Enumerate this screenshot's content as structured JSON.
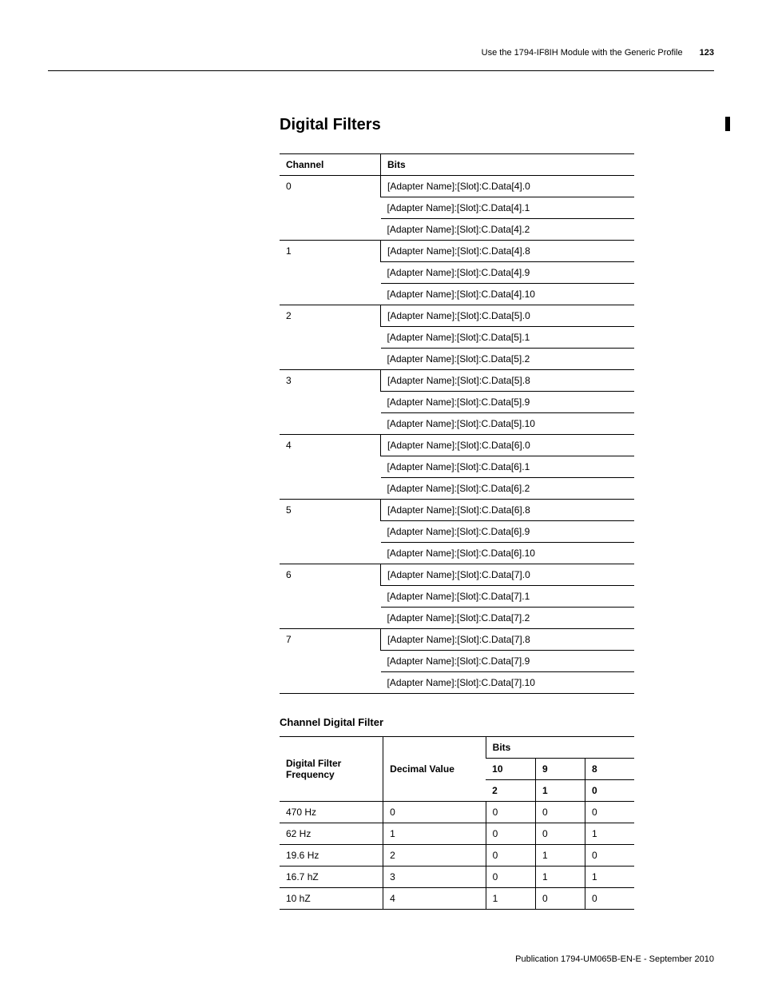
{
  "header": {
    "breadcrumb": "Use the 1794-IF8IH Module with the Generic Profile",
    "page_number": "123"
  },
  "section_title": "Digital Filters",
  "table1": {
    "columns": [
      "Channel",
      "Bits"
    ],
    "rows": [
      {
        "channel": "0",
        "bits": [
          "[Adapter Name]:[Slot]:C.Data[4].0",
          "[Adapter Name]:[Slot]:C.Data[4].1",
          "[Adapter Name]:[Slot]:C.Data[4].2"
        ]
      },
      {
        "channel": "1",
        "bits": [
          "[Adapter Name]:[Slot]:C.Data[4].8",
          "[Adapter Name]:[Slot]:C.Data[4].9",
          "[Adapter Name]:[Slot]:C.Data[4].10"
        ]
      },
      {
        "channel": "2",
        "bits": [
          "[Adapter Name]:[Slot]:C.Data[5].0",
          "[Adapter Name]:[Slot]:C.Data[5].1",
          "[Adapter Name]:[Slot]:C.Data[5].2"
        ]
      },
      {
        "channel": "3",
        "bits": [
          "[Adapter Name]:[Slot]:C.Data[5].8",
          "[Adapter Name]:[Slot]:C.Data[5].9",
          "[Adapter Name]:[Slot]:C.Data[5].10"
        ]
      },
      {
        "channel": "4",
        "bits": [
          "[Adapter Name]:[Slot]:C.Data[6].0",
          "[Adapter Name]:[Slot]:C.Data[6].1",
          "[Adapter Name]:[Slot]:C.Data[6].2"
        ]
      },
      {
        "channel": "5",
        "bits": [
          "[Adapter Name]:[Slot]:C.Data[6].8",
          "[Adapter Name]:[Slot]:C.Data[6].9",
          "[Adapter Name]:[Slot]:C.Data[6].10"
        ]
      },
      {
        "channel": "6",
        "bits": [
          "[Adapter Name]:[Slot]:C.Data[7].0",
          "[Adapter Name]:[Slot]:C.Data[7].1",
          "[Adapter Name]:[Slot]:C.Data[7].2"
        ]
      },
      {
        "channel": "7",
        "bits": [
          "[Adapter Name]:[Slot]:C.Data[7].8",
          "[Adapter Name]:[Slot]:C.Data[7].9",
          "[Adapter Name]:[Slot]:C.Data[7].10"
        ]
      }
    ]
  },
  "table2_title": "Channel Digital Filter",
  "table2": {
    "col_freq": "Digital Filter Frequency",
    "col_decimal": "Decimal Value",
    "col_bits": "Bits",
    "bits_row1": [
      "10",
      "9",
      "8"
    ],
    "bits_row2": [
      "2",
      "1",
      "0"
    ],
    "rows": [
      {
        "freq": "470 Hz",
        "dec": "0",
        "b10": "0",
        "b9": "0",
        "b8": "0"
      },
      {
        "freq": "62 Hz",
        "dec": "1",
        "b10": "0",
        "b9": "0",
        "b8": "1"
      },
      {
        "freq": "19.6 Hz",
        "dec": "2",
        "b10": "0",
        "b9": "1",
        "b8": "0"
      },
      {
        "freq": "16.7 hZ",
        "dec": "3",
        "b10": "0",
        "b9": "1",
        "b8": "1"
      },
      {
        "freq": "10 hZ",
        "dec": "4",
        "b10": "1",
        "b9": "0",
        "b8": "0"
      }
    ]
  },
  "footer": "Publication 1794-UM065B-EN-E - September 2010"
}
